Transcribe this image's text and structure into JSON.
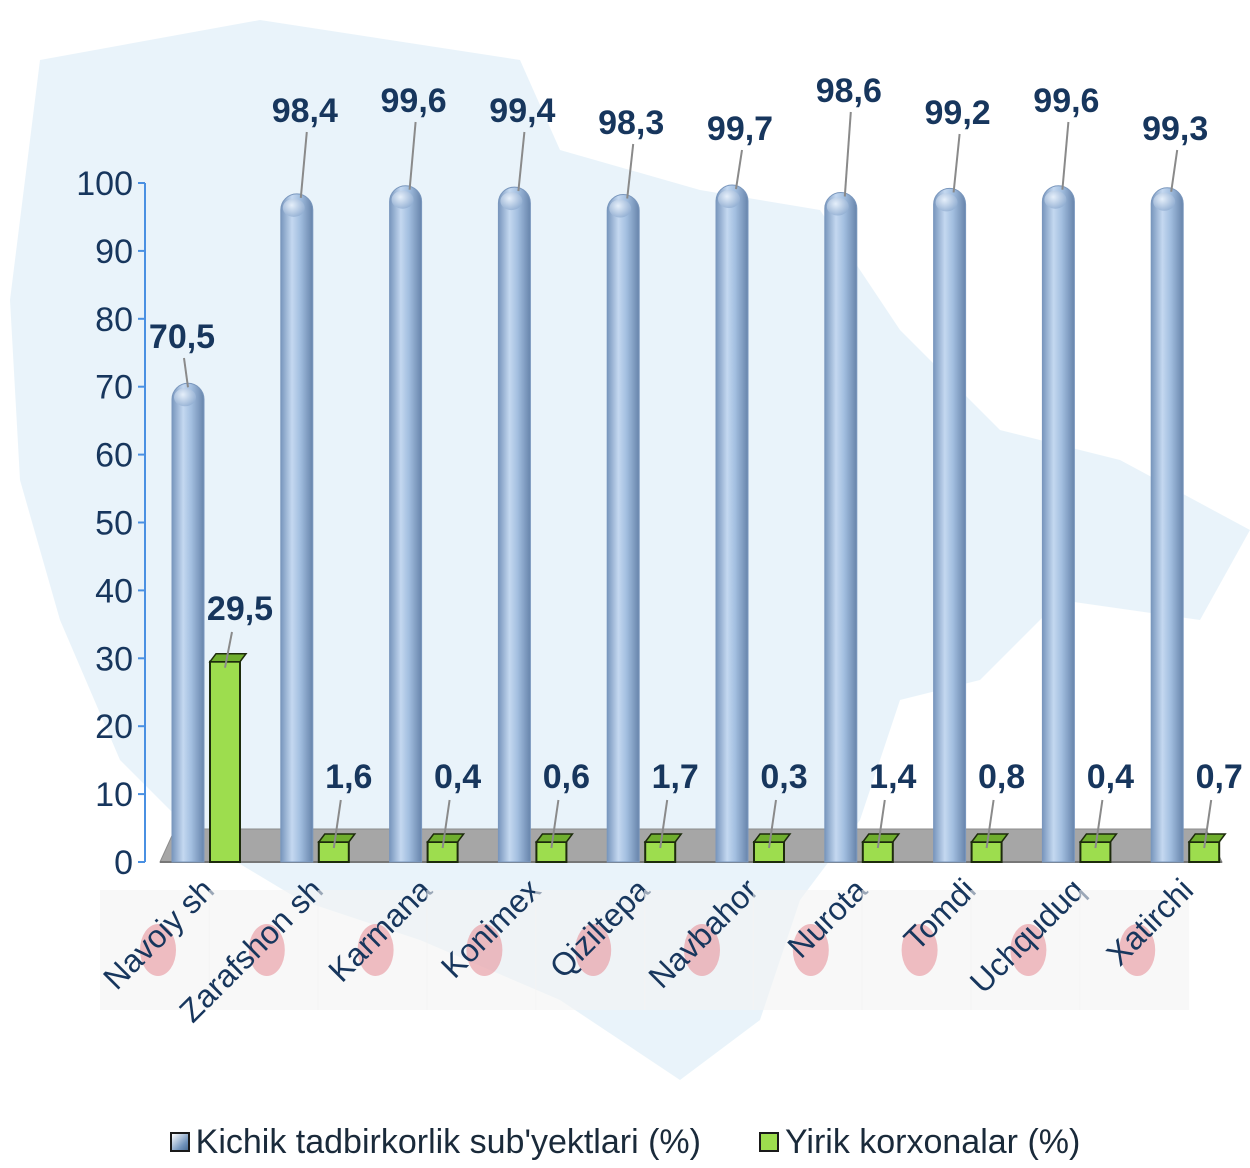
{
  "chart_data": {
    "type": "bar",
    "categories": [
      "Navoiy sh",
      "Zarafshon sh",
      "Karmana",
      "Konimex",
      "Qiziltepa",
      "Navbahor",
      "Nurota",
      "Tomdi",
      "Uchquduq",
      "Xatirchi"
    ],
    "series": [
      {
        "name": "Kichik tadbirkorlik sub'yektlari (%)",
        "values": [
          70.5,
          98.4,
          99.6,
          99.4,
          98.3,
          99.7,
          98.6,
          99.2,
          99.6,
          99.3
        ],
        "labels": [
          "70,5",
          "98,4",
          "99,6",
          "99,4",
          "98,3",
          "99,7",
          "98,6",
          "99,2",
          "99,6",
          "99,3"
        ],
        "color": "#9bb9dc"
      },
      {
        "name": "Yirik korxonalar (%)",
        "values": [
          29.5,
          1.6,
          0.4,
          0.6,
          1.7,
          0.3,
          1.4,
          0.8,
          0.4,
          0.7
        ],
        "labels": [
          "29,5",
          "1,6",
          "0,4",
          "0,6",
          "1,7",
          "0,3",
          "1,4",
          "0,8",
          "0,4",
          "0,7"
        ],
        "color": "#8fd44a"
      }
    ],
    "y_ticks": [
      "0",
      "10",
      "20",
      "30",
      "40",
      "50",
      "60",
      "70",
      "80",
      "90",
      "100"
    ],
    "ylim": [
      0,
      100
    ],
    "title": "",
    "xlabel": "",
    "ylabel": "",
    "grid": false,
    "legend_position": "bottom",
    "label_color": "#17365d",
    "axis_color": "#4a90e2",
    "floor_color": "#a6a6a6",
    "background_map_color": "#d7eaf6"
  },
  "legend": {
    "items": [
      {
        "label": "Kichik tadbirkorlik sub'yektlari (%)"
      },
      {
        "label": "Yirik korxonalar (%)"
      }
    ]
  }
}
